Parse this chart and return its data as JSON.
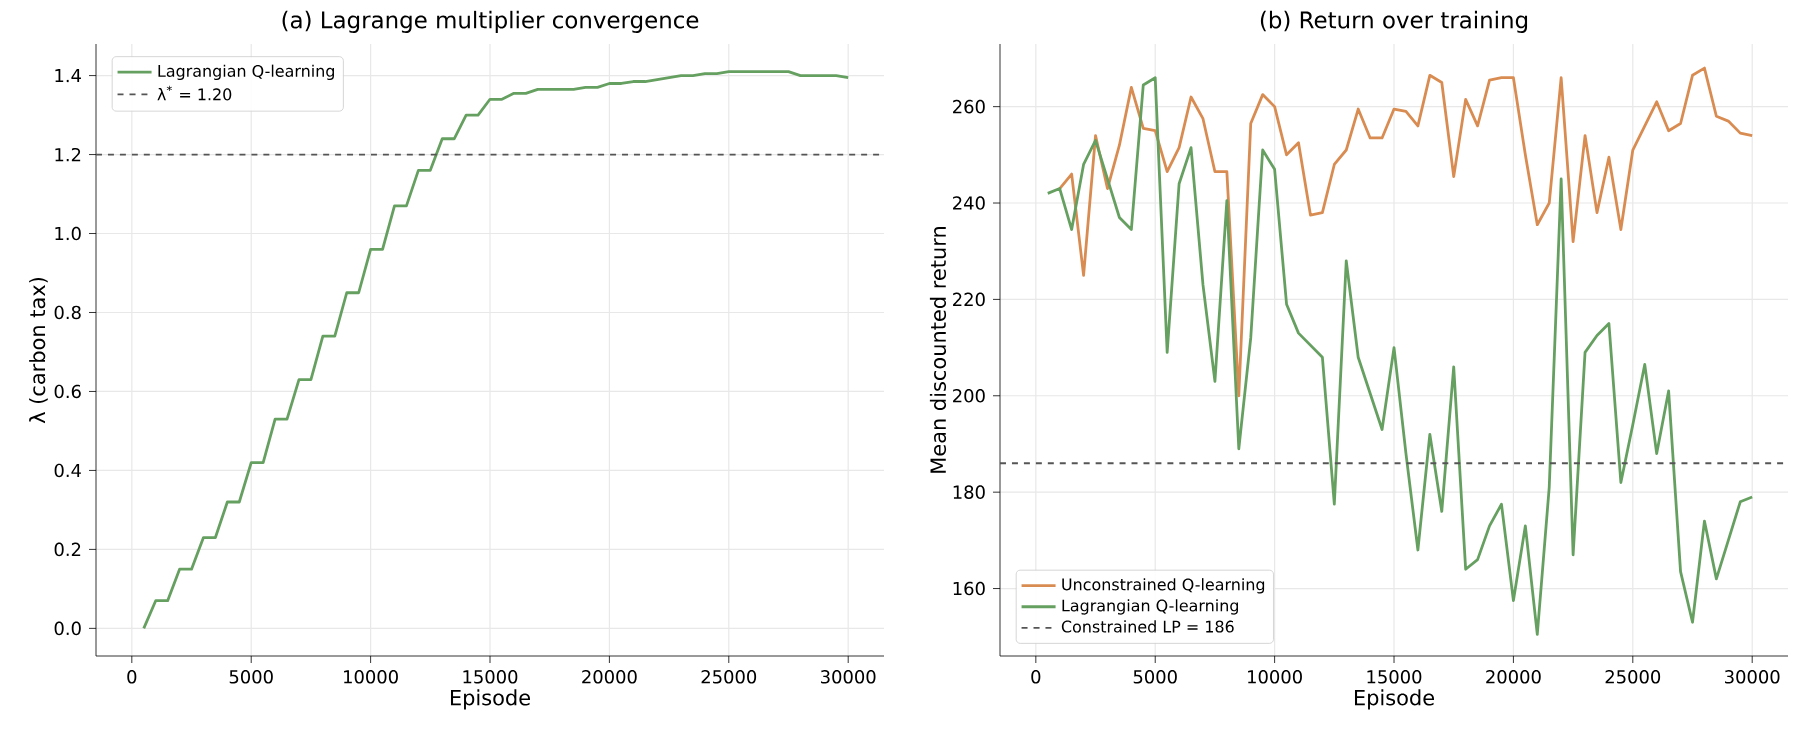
{
  "chart_data": [
    {
      "type": "line",
      "title": "(a)  Lagrange multiplier convergence",
      "xlabel": "Episode",
      "ylabel": "λ (carbon tax)",
      "x": [
        500,
        1000,
        1500,
        2000,
        2500,
        3000,
        3500,
        4000,
        4500,
        5000,
        5500,
        6000,
        6500,
        7000,
        7500,
        8000,
        8500,
        9000,
        9500,
        10000,
        10500,
        11000,
        11500,
        12000,
        12500,
        13000,
        13500,
        14000,
        14500,
        15000,
        15500,
        16000,
        16500,
        17000,
        17500,
        18000,
        18500,
        19000,
        19500,
        20000,
        20500,
        21000,
        21500,
        22000,
        22500,
        23000,
        23500,
        24000,
        24500,
        25000,
        25500,
        26000,
        26500,
        27000,
        27500,
        28000,
        28500,
        29000,
        29500,
        30000
      ],
      "series": [
        {
          "name": "Lagrangian Q-learning",
          "color": "#66a061",
          "values": [
            0,
            0.07,
            0.07,
            0.15,
            0.15,
            0.23,
            0.23,
            0.32,
            0.32,
            0.42,
            0.42,
            0.53,
            0.53,
            0.63,
            0.63,
            0.74,
            0.74,
            0.85,
            0.85,
            0.96,
            0.96,
            1.07,
            1.07,
            1.16,
            1.16,
            1.24,
            1.24,
            1.3,
            1.3,
            1.34,
            1.34,
            1.355,
            1.355,
            1.365,
            1.365,
            1.365,
            1.365,
            1.37,
            1.37,
            1.38,
            1.38,
            1.385,
            1.385,
            1.39,
            1.395,
            1.4,
            1.4,
            1.405,
            1.405,
            1.41,
            1.41,
            1.41,
            1.41,
            1.41,
            1.41,
            1.4,
            1.4,
            1.4,
            1.4,
            1.395
          ]
        }
      ],
      "ref_lines": [
        {
          "axis": "y",
          "value": 1.2,
          "label": "λ$^{*}$ = 1.20",
          "color": "#555555",
          "line_style": "dashed"
        }
      ],
      "xlim": [
        -1500,
        31500
      ],
      "ylim": [
        -0.07,
        1.48
      ],
      "xticks": [
        0,
        5000,
        10000,
        15000,
        20000,
        25000,
        30000
      ],
      "yticks": [
        {
          "value": 0,
          "label": "0.0"
        },
        {
          "value": 0.2,
          "label": "0.2"
        },
        {
          "value": 0.4,
          "label": "0.4"
        },
        {
          "value": 0.6,
          "label": "0.6"
        },
        {
          "value": 0.8,
          "label": "0.8"
        },
        {
          "value": 1.0,
          "label": "1.0"
        },
        {
          "value": 1.2,
          "label": "1.2"
        },
        {
          "value": 1.4,
          "label": "1.4"
        }
      ],
      "grid": true,
      "legend": "top left",
      "marker": "none",
      "line_style": "solid"
    },
    {
      "type": "line",
      "title": "(b)  Return over training",
      "xlabel": "Episode",
      "ylabel": "Mean discounted return",
      "x": [
        500,
        1000,
        1500,
        2000,
        2500,
        3000,
        3500,
        4000,
        4500,
        5000,
        5500,
        6000,
        6500,
        7000,
        7500,
        8000,
        8500,
        9000,
        9500,
        10000,
        10500,
        11000,
        11500,
        12000,
        12500,
        13000,
        13500,
        14000,
        14500,
        15000,
        15500,
        16000,
        16500,
        17000,
        17500,
        18000,
        18500,
        19000,
        19500,
        20000,
        20500,
        21000,
        21500,
        22000,
        22500,
        23000,
        23500,
        24000,
        24500,
        25000,
        25500,
        26000,
        26500,
        27000,
        27500,
        28000,
        28500,
        29000,
        29500,
        30000
      ],
      "series": [
        {
          "name": "Unconstrained Q-learning",
          "color": "#d98c52",
          "values": [
            null,
            243,
            246,
            225,
            254,
            243,
            252,
            264,
            255.5,
            255,
            246.5,
            251.5,
            262,
            257.5,
            246.5,
            246.5,
            200,
            256.5,
            262.5,
            260,
            250,
            252.5,
            237.5,
            238,
            248,
            251,
            259.5,
            253.5,
            253.5,
            259.5,
            259,
            256,
            266.5,
            265,
            245.5,
            261.5,
            256,
            265.5,
            266,
            266,
            250,
            235.5,
            240,
            266,
            232,
            254,
            238,
            249.5,
            234.5,
            251,
            256,
            261,
            255,
            256.5,
            266.5,
            268,
            258,
            257,
            254.5,
            254
          ]
        },
        {
          "name": "Lagrangian Q-learning",
          "color": "#66a061",
          "values": [
            242,
            243,
            234.5,
            248,
            253,
            245,
            237,
            234.5,
            264.5,
            266,
            209,
            244,
            251.5,
            223,
            203,
            240.5,
            189,
            212,
            251,
            247,
            219,
            213,
            210.5,
            208,
            177.5,
            228,
            208,
            200.5,
            193,
            210,
            188,
            168,
            192,
            176,
            206,
            164,
            166,
            173,
            177.5,
            157.5,
            173,
            150.5,
            181,
            245,
            167,
            209,
            212.5,
            215,
            182,
            194,
            206.5,
            188,
            201,
            163.5,
            153,
            174,
            162,
            170,
            178,
            179
          ]
        }
      ],
      "ref_lines": [
        {
          "axis": "y",
          "value": 186,
          "label": "Constrained LP = 186",
          "color": "#555555",
          "line_style": "dashed"
        }
      ],
      "xlim": [
        -1500,
        31500
      ],
      "ylim": [
        146,
        273
      ],
      "xticks": [
        0,
        5000,
        10000,
        15000,
        20000,
        25000,
        30000
      ],
      "yticks": [
        160,
        180,
        200,
        220,
        240,
        260
      ],
      "grid": true,
      "legend": "bottom left",
      "marker": "none",
      "line_style": "solid"
    }
  ]
}
